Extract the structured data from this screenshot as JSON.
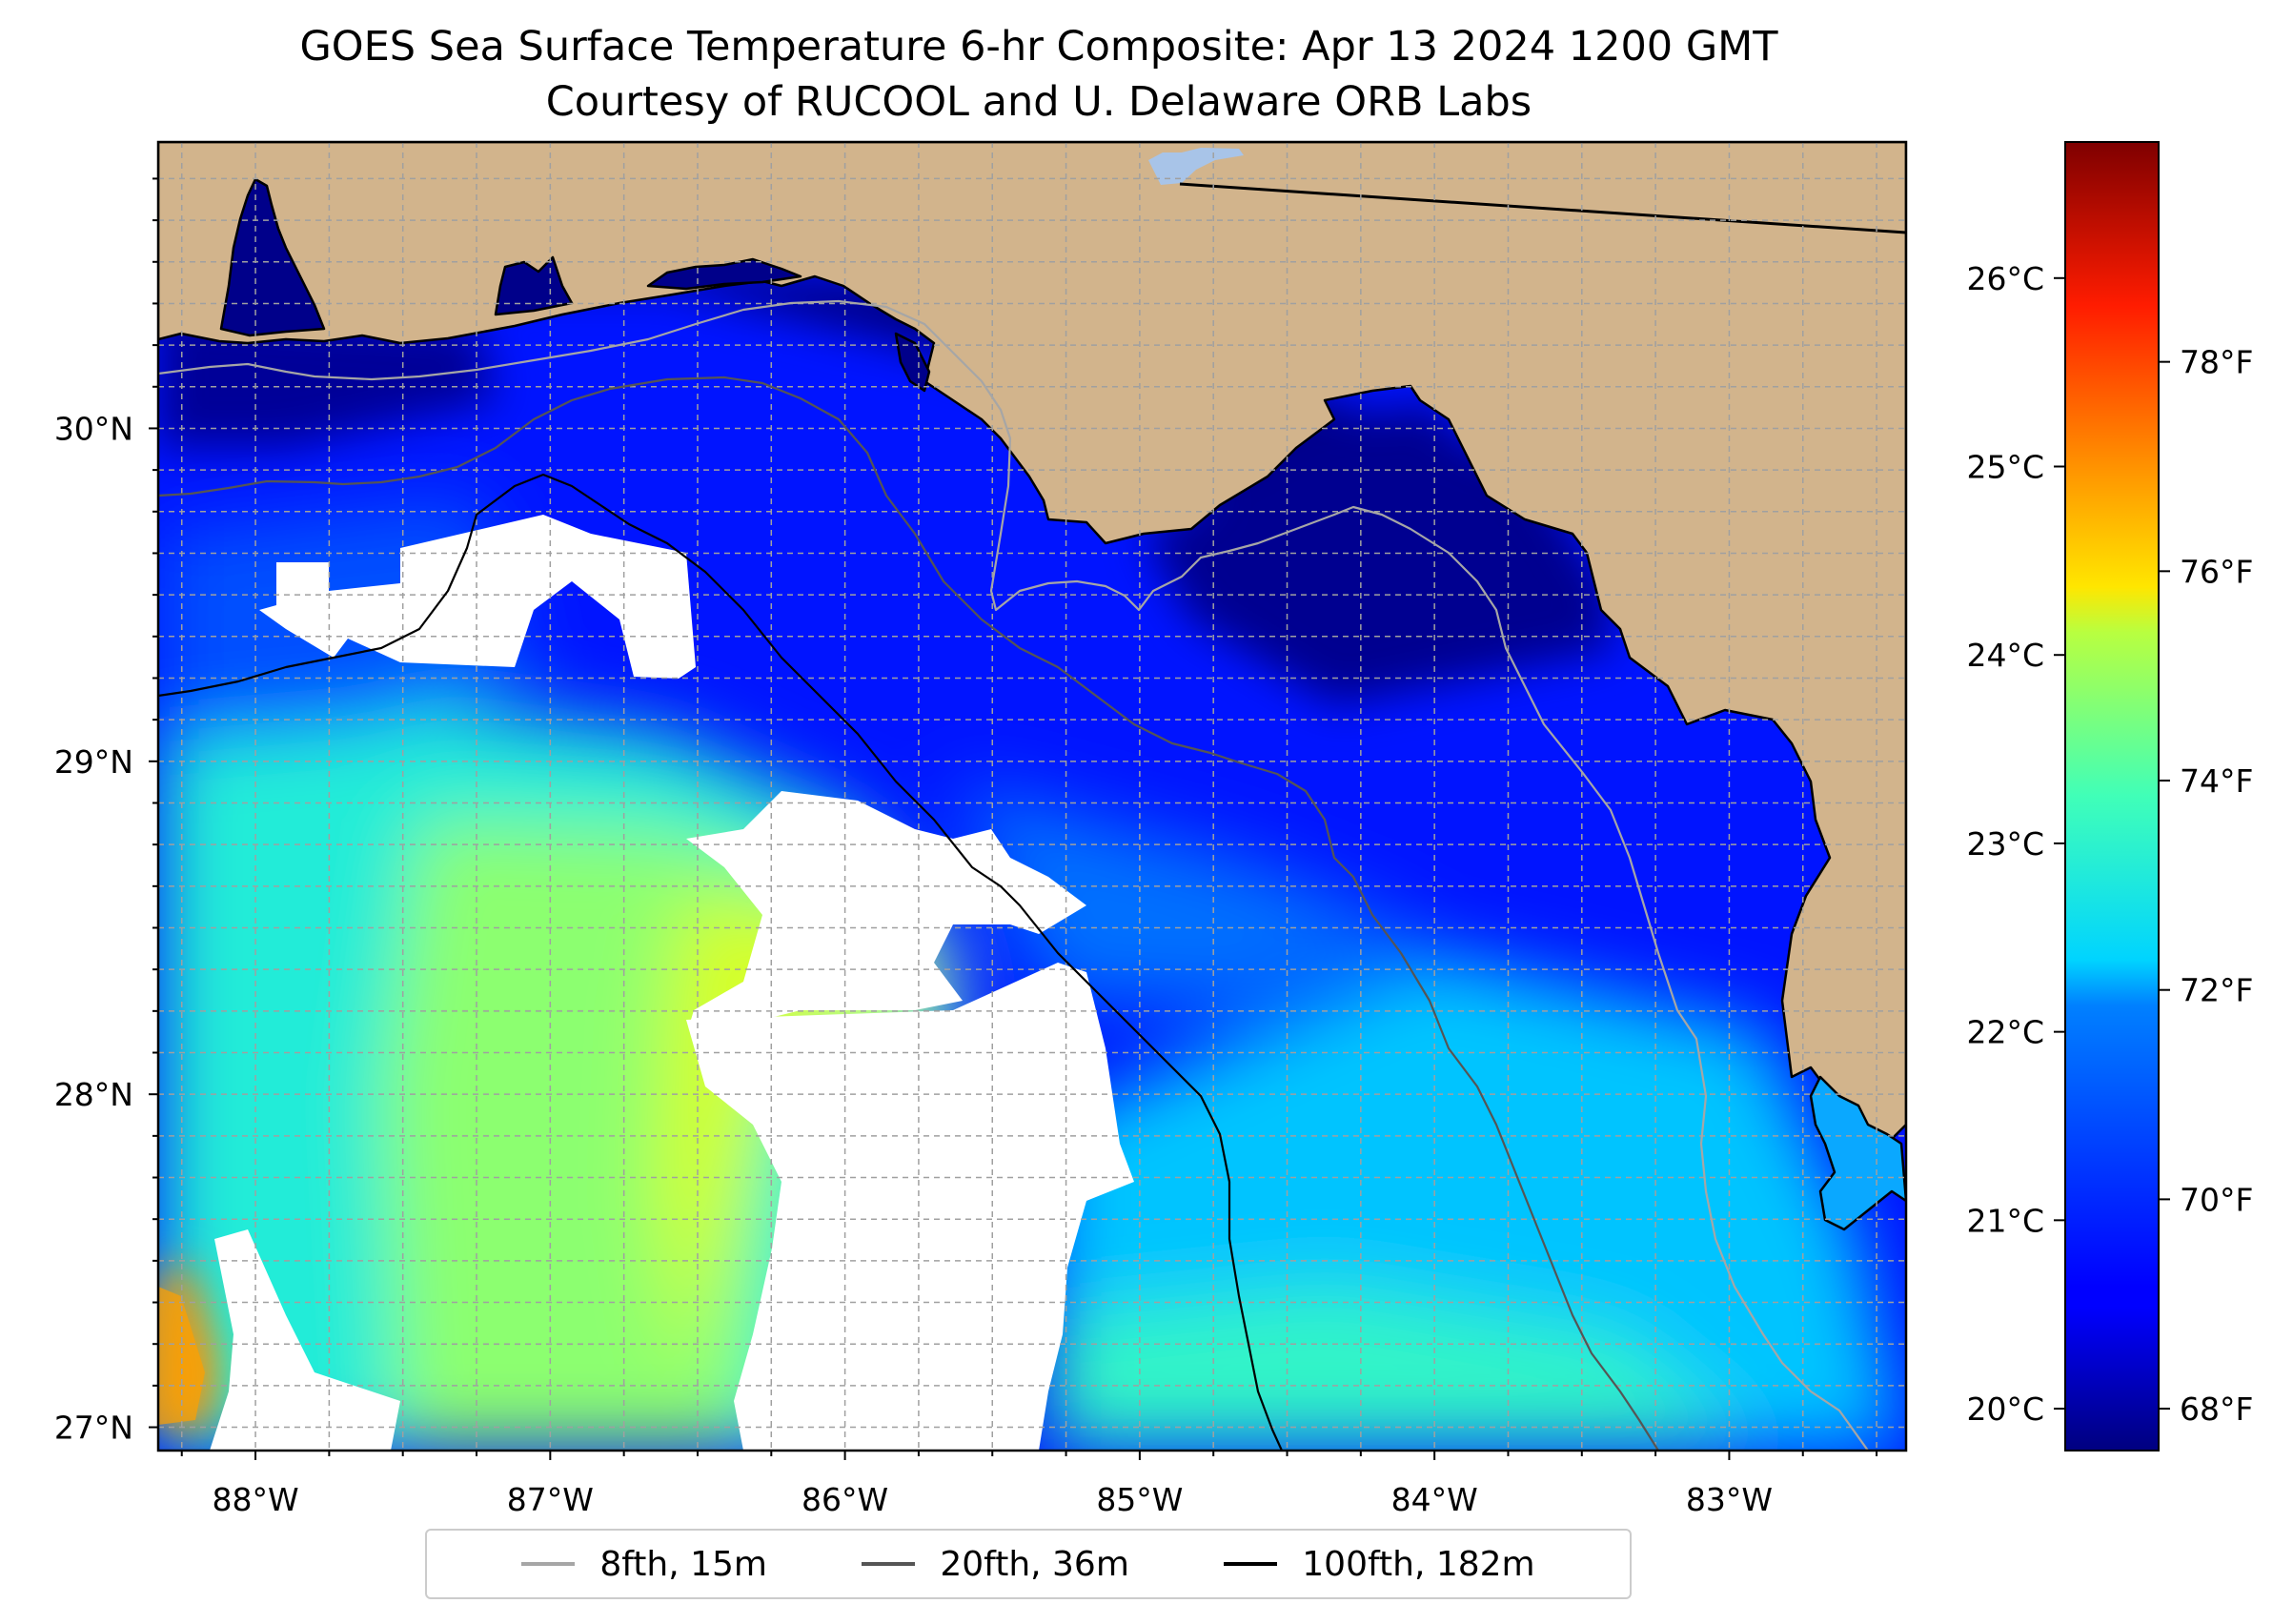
{
  "title": {
    "line1": "GOES Sea Surface Temperature 6-hr Composite: Apr 13 2024 1200 GMT",
    "line2": "Courtesy of RUCOOL and U. Delaware ORB Labs"
  },
  "map": {
    "lon_range": [
      -88.33,
      -82.4
    ],
    "lat_range": [
      26.93,
      30.86
    ],
    "lon_ticks": [
      "88°W",
      "87°W",
      "86°W",
      "85°W",
      "84°W",
      "83°W"
    ],
    "lat_ticks": [
      "30°N",
      "29°N",
      "28°N",
      "27°N"
    ],
    "grid": true,
    "colors": {
      "land": "#d2b48c",
      "no_data": "#ffffff",
      "coastline": "#000000",
      "grid": "#a0a0a0",
      "lake": "#a8c4e8"
    },
    "sst_regions_f": [
      {
        "area": "nearshore shelf (Panhandle, Big Bend)",
        "temp_f": 67.8
      },
      {
        "area": "mid shelf",
        "temp_f": 69.5
      },
      {
        "area": "outer shelf / slope",
        "temp_f": 71.5
      },
      {
        "area": "offshore west-central",
        "temp_f": 72.8
      },
      {
        "area": "offshore south-central",
        "temp_f": 74.8
      },
      {
        "area": "southwest corner",
        "temp_f": 76.5
      }
    ]
  },
  "colorbar": {
    "colormap": "jet",
    "celsius_ticks": [
      "26°C",
      "25°C",
      "24°C",
      "23°C",
      "22°C",
      "21°C",
      "20°C"
    ],
    "fahrenheit_ticks": [
      "78°F",
      "76°F",
      "74°F",
      "72°F",
      "70°F",
      "68°F"
    ],
    "range_f": [
      67.6,
      80.1
    ]
  },
  "legend": {
    "items": [
      {
        "label": "8fth, 15m",
        "color": "#a6a6a6"
      },
      {
        "label": "20fth, 36m",
        "color": "#555555"
      },
      {
        "label": "100fth, 182m",
        "color": "#000000"
      }
    ],
    "placement": "bottom-center"
  }
}
